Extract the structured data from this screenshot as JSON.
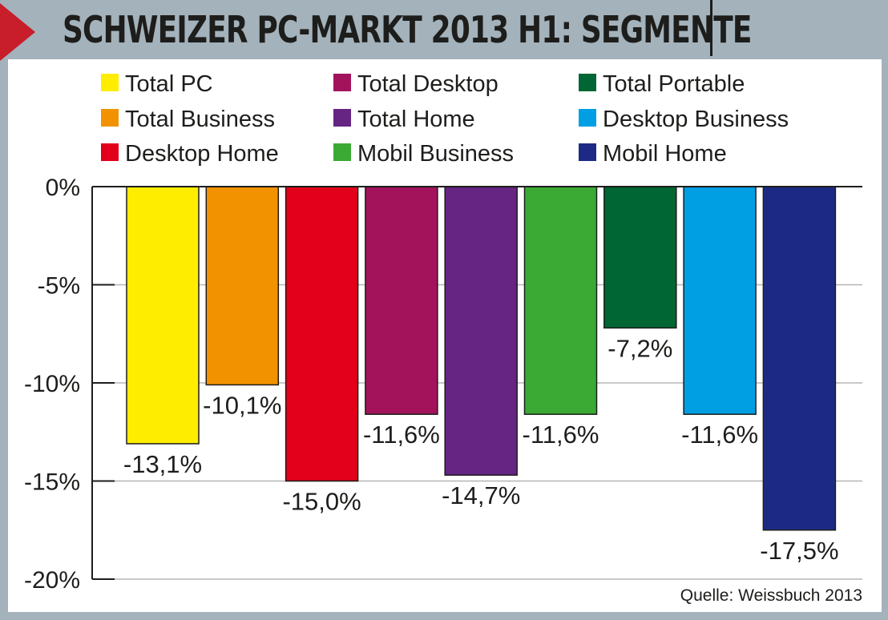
{
  "header": {
    "title": "SCHWEIZER PC-MARKT 2013 H1: SEGMENTE"
  },
  "source": "Quelle: Weissbuch 2013",
  "chart_data": {
    "type": "bar",
    "title": "SCHWEIZER PC-MARKT 2013 H1: SEGMENTE",
    "ylim": [
      -20,
      0
    ],
    "yticks": [
      0,
      -5,
      -10,
      -15,
      -20
    ],
    "ytick_labels": [
      "0%",
      "-5%",
      "-10%",
      "-15%",
      "-20%"
    ],
    "grid": true,
    "legend_position": "top",
    "series": [
      {
        "name": "Total PC",
        "value": -13.1,
        "label": "-13,1%",
        "color": "#ffed00"
      },
      {
        "name": "Total Business",
        "value": -10.1,
        "label": "-10,1%",
        "color": "#f39200"
      },
      {
        "name": "Desktop Home",
        "value": -15.0,
        "label": "-15,0%",
        "color": "#e2001a"
      },
      {
        "name": "Total Desktop",
        "value": -11.6,
        "label": "-11,6%",
        "color": "#a3135b"
      },
      {
        "name": "Total Home",
        "value": -14.7,
        "label": "-14,7%",
        "color": "#662483"
      },
      {
        "name": "Mobil Business",
        "value": -11.6,
        "label": "-11,6%",
        "color": "#3aaa35"
      },
      {
        "name": "Total Portable",
        "value": -7.2,
        "label": "-7,2%",
        "color": "#006633"
      },
      {
        "name": "Desktop Business",
        "value": -11.6,
        "label": "-11,6%",
        "color": "#009fe3"
      },
      {
        "name": "Mobil Home",
        "value": -17.5,
        "label": "-17,5%",
        "color": "#1d2a85"
      }
    ],
    "legend_order": [
      "Total PC",
      "Total Desktop",
      "Total Portable",
      "Total Business",
      "Total Home",
      "Desktop Business",
      "Desktop Home",
      "Mobil Business",
      "Mobil Home"
    ]
  }
}
